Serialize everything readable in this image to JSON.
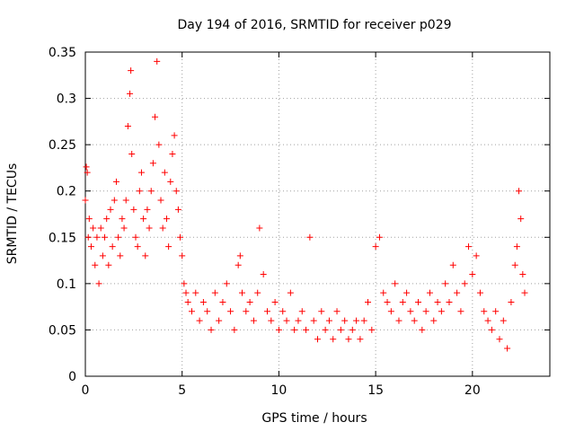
{
  "chart_data": {
    "type": "scatter",
    "title": "Day 194 of 2016, SRMTID for receiver p029",
    "xlabel": "GPS time / hours",
    "ylabel": "SRMTID / TECUs",
    "xlim": [
      0,
      24
    ],
    "ylim": [
      0,
      0.35
    ],
    "xticks": [
      0,
      5,
      10,
      15,
      20
    ],
    "yticks": [
      0,
      0.05,
      0.1,
      0.15,
      0.2,
      0.25,
      0.3,
      0.35
    ],
    "xtick_labels": [
      "0",
      "5",
      "10",
      "15",
      "20"
    ],
    "ytick_labels": [
      "0",
      "0.05",
      "0.1",
      "0.15",
      "0.2",
      "0.25",
      "0.3",
      "0.35"
    ],
    "grid": true,
    "marker": "+",
    "color": "#ff0000",
    "series": [
      {
        "name": "SRMTID",
        "x": [
          0.0,
          0.05,
          0.1,
          0.15,
          0.2,
          0.3,
          0.4,
          0.5,
          0.6,
          0.7,
          0.8,
          0.9,
          1.0,
          1.1,
          1.2,
          1.3,
          1.4,
          1.5,
          1.6,
          1.7,
          1.8,
          1.9,
          2.0,
          2.1,
          2.2,
          2.3,
          2.35,
          2.4,
          2.5,
          2.6,
          2.7,
          2.8,
          2.9,
          3.0,
          3.1,
          3.2,
          3.3,
          3.4,
          3.5,
          3.6,
          3.7,
          3.8,
          3.9,
          4.0,
          4.1,
          4.2,
          4.3,
          4.4,
          4.5,
          4.6,
          4.7,
          4.8,
          4.9,
          5.0,
          5.1,
          5.2,
          5.3,
          5.5,
          5.7,
          5.9,
          6.1,
          6.3,
          6.5,
          6.7,
          6.9,
          7.1,
          7.3,
          7.5,
          7.7,
          7.9,
          8.0,
          8.1,
          8.3,
          8.5,
          8.7,
          8.9,
          9.0,
          9.2,
          9.4,
          9.6,
          9.8,
          10.0,
          10.2,
          10.4,
          10.6,
          10.8,
          11.0,
          11.2,
          11.4,
          11.6,
          11.8,
          12.0,
          12.2,
          12.4,
          12.6,
          12.8,
          13.0,
          13.2,
          13.4,
          13.6,
          13.8,
          14.0,
          14.2,
          14.4,
          14.6,
          14.8,
          15.0,
          15.2,
          15.4,
          15.6,
          15.8,
          16.0,
          16.2,
          16.4,
          16.6,
          16.8,
          17.0,
          17.2,
          17.4,
          17.6,
          17.8,
          18.0,
          18.2,
          18.4,
          18.6,
          18.8,
          19.0,
          19.2,
          19.4,
          19.6,
          19.8,
          20.0,
          20.2,
          20.4,
          20.6,
          20.8,
          21.0,
          21.2,
          21.4,
          21.6,
          21.8,
          22.0,
          22.2,
          22.3,
          22.4,
          22.5,
          22.6,
          22.7
        ],
        "y": [
          0.19,
          0.226,
          0.22,
          0.15,
          0.17,
          0.14,
          0.16,
          0.12,
          0.15,
          0.1,
          0.16,
          0.13,
          0.15,
          0.17,
          0.12,
          0.18,
          0.14,
          0.19,
          0.21,
          0.15,
          0.13,
          0.17,
          0.16,
          0.19,
          0.27,
          0.305,
          0.33,
          0.24,
          0.18,
          0.15,
          0.14,
          0.2,
          0.22,
          0.17,
          0.13,
          0.18,
          0.16,
          0.2,
          0.23,
          0.28,
          0.34,
          0.25,
          0.19,
          0.16,
          0.22,
          0.17,
          0.14,
          0.21,
          0.24,
          0.26,
          0.2,
          0.18,
          0.15,
          0.13,
          0.1,
          0.09,
          0.08,
          0.07,
          0.09,
          0.06,
          0.08,
          0.07,
          0.05,
          0.09,
          0.06,
          0.08,
          0.1,
          0.07,
          0.05,
          0.12,
          0.13,
          0.09,
          0.07,
          0.08,
          0.06,
          0.09,
          0.16,
          0.11,
          0.07,
          0.06,
          0.08,
          0.05,
          0.07,
          0.06,
          0.09,
          0.05,
          0.06,
          0.07,
          0.05,
          0.15,
          0.06,
          0.04,
          0.07,
          0.05,
          0.06,
          0.04,
          0.07,
          0.05,
          0.06,
          0.04,
          0.05,
          0.06,
          0.04,
          0.06,
          0.08,
          0.05,
          0.14,
          0.15,
          0.09,
          0.08,
          0.07,
          0.1,
          0.06,
          0.08,
          0.09,
          0.07,
          0.06,
          0.08,
          0.05,
          0.07,
          0.09,
          0.06,
          0.08,
          0.07,
          0.1,
          0.08,
          0.12,
          0.09,
          0.07,
          0.1,
          0.14,
          0.11,
          0.13,
          0.09,
          0.07,
          0.06,
          0.05,
          0.07,
          0.04,
          0.06,
          0.03,
          0.08,
          0.12,
          0.14,
          0.2,
          0.17,
          0.11,
          0.09
        ]
      }
    ]
  }
}
